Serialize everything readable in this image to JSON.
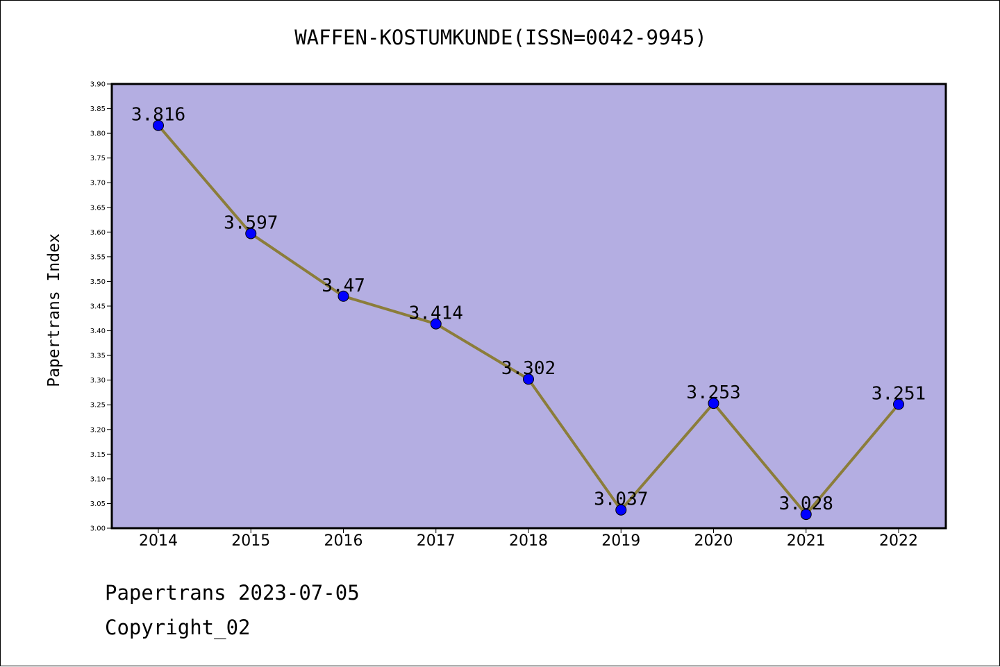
{
  "chart_data": {
    "type": "line",
    "title": "WAFFEN-KOSTUMKUNDE(ISSN=0042-9945)",
    "xlabel": "",
    "ylabel": "Papertrans Index",
    "categories": [
      "2014",
      "2015",
      "2016",
      "2017",
      "2018",
      "2019",
      "2020",
      "2021",
      "2022"
    ],
    "series": [
      {
        "values": [
          3.816,
          3.597,
          3.47,
          3.414,
          3.302,
          3.037,
          3.253,
          3.028,
          3.251
        ],
        "labels": [
          "3.816",
          "3.597",
          "3.47",
          "3.414",
          "3.302",
          "3.037",
          "3.253",
          "3.028",
          "3.251"
        ],
        "line_color": "#8b7d3a",
        "marker_color": "#0000ff"
      }
    ],
    "ylim": [
      3.0,
      3.9
    ],
    "yticks": [
      "3.00",
      "3.05",
      "3.10",
      "3.15",
      "3.20",
      "3.25",
      "3.30",
      "3.35",
      "3.40",
      "3.45",
      "3.50",
      "3.55",
      "3.60",
      "3.65",
      "3.70",
      "3.75",
      "3.80",
      "3.85",
      "3.90"
    ],
    "grid": false,
    "plot_background": "#b4aee2"
  },
  "footer": {
    "date_line": "Papertrans 2023-07-05",
    "copyright": "Copyright_02"
  }
}
